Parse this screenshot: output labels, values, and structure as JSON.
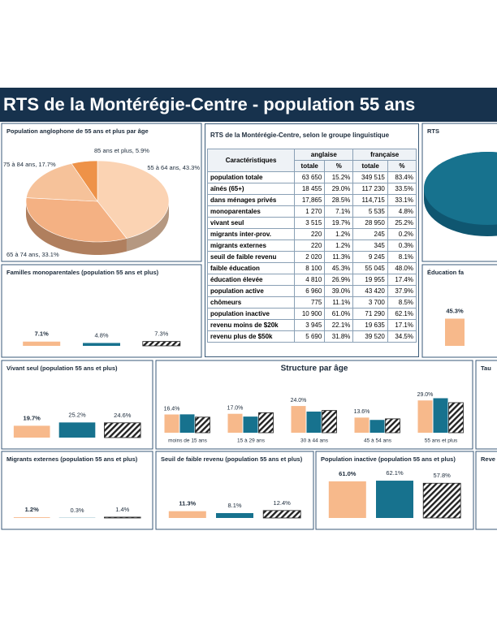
{
  "header": {
    "title": "RTS de la Montérégie-Centre - population 55 ans"
  },
  "table": {
    "title": "RTS de la Montérégie-Centre, selon le groupe linguistique",
    "header": [
      "Caractéristiques",
      "anglaise",
      "française"
    ],
    "subheader": [
      "totale",
      "%",
      "totale",
      "%"
    ],
    "rows": [
      [
        "population totale",
        "63 650",
        "15.2%",
        "349 515",
        "83.4%"
      ],
      [
        "aînés (65+)",
        "18 455",
        "29.0%",
        "117 230",
        "33.5%"
      ],
      [
        "dans ménages privés",
        "17,865",
        "28.5%",
        "114,715",
        "33.1%"
      ],
      [
        "monoparentales",
        "1 270",
        "7.1%",
        "5 535",
        "4.8%"
      ],
      [
        "vivant seul",
        "3 515",
        "19.7%",
        "28 950",
        "25.2%"
      ],
      [
        "migrants inter-prov.",
        "220",
        "1.2%",
        "245",
        "0.2%"
      ],
      [
        "migrants externes",
        "220",
        "1.2%",
        "345",
        "0.3%"
      ],
      [
        "seuil de faible revenu",
        "2 020",
        "11.3%",
        "9 245",
        "8.1%"
      ],
      [
        "faible éducation",
        "8 100",
        "45.3%",
        "55 045",
        "48.0%"
      ],
      [
        "éducation élevée",
        "4 810",
        "26.9%",
        "19 955",
        "17.4%"
      ],
      [
        "population active",
        "6 960",
        "39.0%",
        "43 420",
        "37.9%"
      ],
      [
        "chômeurs",
        "775",
        "11.1%",
        "3 700",
        "8.5%"
      ],
      [
        "population inactive",
        "10 900",
        "61.0%",
        "71 290",
        "62.1%"
      ],
      [
        "revenu moins de $20k",
        "3 945",
        "22.1%",
        "19 635",
        "17.1%"
      ],
      [
        "revenu plus de $50k",
        "5 690",
        "31.8%",
        "39 520",
        "34.5%"
      ]
    ]
  },
  "cropped_panels": [
    "RTS",
    "Tau",
    "Reve"
  ],
  "chart_data": [
    {
      "type": "pie",
      "title": "Population anglophone de 55 ans et plus par âge",
      "values": [
        43.3,
        33.1,
        17.7,
        5.9
      ],
      "value_labels": [
        "55 à 64 ans, 43.3%",
        "65 à 74 ans, 33.1%",
        "75 à 84 ans, 17.7%",
        "85 ans et plus, 5.9%"
      ],
      "colors": [
        "#fbd3b3",
        "#f4b183",
        "#f6c29a",
        "#ee9248"
      ]
    },
    {
      "type": "bar",
      "title": "Familles monoparentales (population 55 ans et plus)",
      "values": [
        7.1,
        4.8,
        7.3
      ],
      "value_labels": [
        "7.1%",
        "4.8%",
        "7.3%"
      ],
      "colors": [
        "#f7b98b",
        "#17728e",
        "#222222"
      ],
      "hatched": [
        false,
        false,
        true
      ],
      "ylim": [
        0,
        100
      ]
    },
    {
      "type": "bar",
      "title": "Vivant seul (population 55 ans et plus)",
      "values": [
        19.7,
        25.2,
        24.6
      ],
      "value_labels": [
        "19.7%",
        "25.2%",
        "24.6%"
      ],
      "colors": [
        "#f7b98b",
        "#17728e",
        "#222222"
      ],
      "hatched": [
        false,
        false,
        true
      ],
      "ylim": [
        0,
        100
      ]
    },
    {
      "type": "grouped_bar",
      "title": "Structure par âge",
      "categories": [
        "moins de 15 ans",
        "15 à 29 ans",
        "30 à 44 ans",
        "45 à 54 ans",
        "55 ans et plus"
      ],
      "series": [
        {
          "color": "#f7b98b",
          "hatched": false,
          "values": [
            16.4,
            17.0,
            24.0,
            13.6,
            29.0
          ],
          "value_labels": [
            "16.4%",
            "17.0%",
            "24.0%",
            "13.6%",
            "29.0%"
          ]
        },
        {
          "color": "#17728e",
          "hatched": false,
          "values": [
            16.5,
            14.5,
            19.0,
            11.5,
            31.0
          ]
        },
        {
          "color": "#222222",
          "hatched": true,
          "values": [
            14.0,
            18.0,
            20.0,
            12.5,
            27.0
          ]
        }
      ],
      "ylim": [
        0,
        35
      ]
    },
    {
      "type": "bar",
      "title": "Migrants externes (population 55 ans et plus)",
      "values": [
        1.2,
        0.3,
        1.4
      ],
      "value_labels": [
        "1.2%",
        "0.3%",
        "1.4%"
      ],
      "colors": [
        "#f7b98b",
        "#17728e",
        "#222222"
      ],
      "hatched": [
        false,
        false,
        true
      ],
      "ylim": [
        0,
        100
      ]
    },
    {
      "type": "bar",
      "title": "Seuil de faible revenu (population 55 ans et plus)",
      "values": [
        11.3,
        8.1,
        12.4
      ],
      "value_labels": [
        "11.3%",
        "8.1%",
        "12.4%"
      ],
      "colors": [
        "#f7b98b",
        "#17728e",
        "#222222"
      ],
      "hatched": [
        false,
        false,
        true
      ],
      "ylim": [
        0,
        100
      ]
    },
    {
      "type": "bar",
      "title": "Population inactive (population 55 ans et plus)",
      "values": [
        61.0,
        62.1,
        57.8
      ],
      "value_labels": [
        "61.0%",
        "62.1%",
        "57.8%"
      ],
      "colors": [
        "#f7b98b",
        "#17728e",
        "#222222"
      ],
      "hatched": [
        false,
        false,
        true
      ],
      "ylim": [
        0,
        100
      ]
    },
    {
      "type": "bar",
      "title": "Éducation fa",
      "values": [
        45.3
      ],
      "value_labels": [
        "45.3%"
      ],
      "colors": [
        "#f7b98b"
      ],
      "hatched": [
        false
      ],
      "ylim": [
        0,
        100
      ]
    }
  ]
}
